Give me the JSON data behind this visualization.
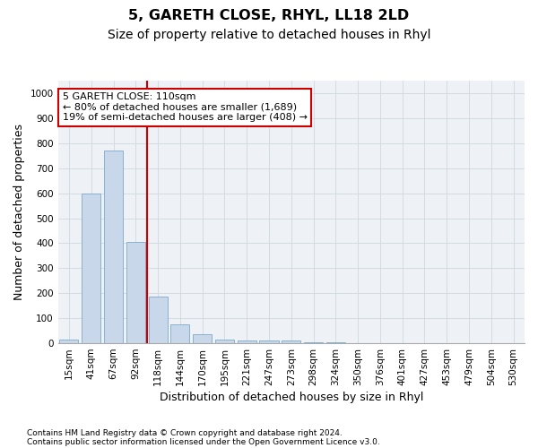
{
  "title": "5, GARETH CLOSE, RHYL, LL18 2LD",
  "subtitle": "Size of property relative to detached houses in Rhyl",
  "xlabel": "Distribution of detached houses by size in Rhyl",
  "ylabel": "Number of detached properties",
  "footnote1": "Contains HM Land Registry data © Crown copyright and database right 2024.",
  "footnote2": "Contains public sector information licensed under the Open Government Licence v3.0.",
  "categories": [
    "15sqm",
    "41sqm",
    "67sqm",
    "92sqm",
    "118sqm",
    "144sqm",
    "170sqm",
    "195sqm",
    "221sqm",
    "247sqm",
    "273sqm",
    "298sqm",
    "324sqm",
    "350sqm",
    "376sqm",
    "401sqm",
    "427sqm",
    "453sqm",
    "479sqm",
    "504sqm",
    "530sqm"
  ],
  "values": [
    15,
    600,
    770,
    405,
    185,
    77,
    37,
    16,
    12,
    10,
    12,
    5,
    3,
    2,
    1,
    1,
    0,
    0,
    0,
    0,
    0
  ],
  "bar_color": "#c8d8ea",
  "bar_edge_color": "#7aaaca",
  "vline_color": "#cc0000",
  "vline_index": 4,
  "annotation_line1": "5 GARETH CLOSE: 110sqm",
  "annotation_line2": "← 80% of detached houses are smaller (1,689)",
  "annotation_line3": "19% of semi-detached houses are larger (408) →",
  "annotation_box_color": "#cc0000",
  "ylim": [
    0,
    1050
  ],
  "yticks": [
    0,
    100,
    200,
    300,
    400,
    500,
    600,
    700,
    800,
    900,
    1000
  ],
  "grid_color": "#d0d8e0",
  "background_color": "#eef2f7",
  "title_fontsize": 11.5,
  "subtitle_fontsize": 10,
  "axis_label_fontsize": 9,
  "tick_fontsize": 7.5,
  "annot_fontsize": 8
}
